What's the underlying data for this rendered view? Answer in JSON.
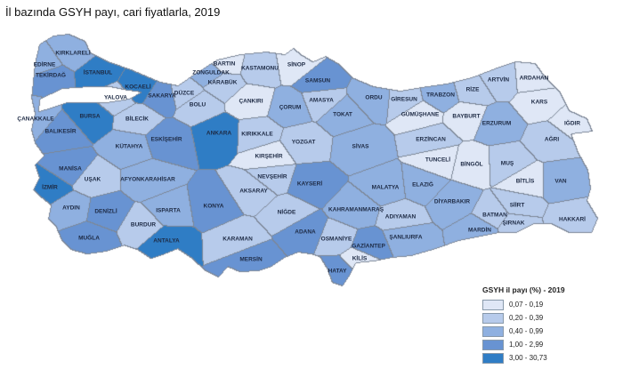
{
  "title": "İl bazında GSYH payı, cari fiyatlarla, 2019",
  "legend": {
    "title": "GSYH il payı (%) - 2019",
    "classes": [
      {
        "label": "0,07 - 0,19",
        "color": "#dfe7f6"
      },
      {
        "label": "0,20 - 0,39",
        "color": "#b7cbeb"
      },
      {
        "label": "0,40 - 0,99",
        "color": "#8fb0e0"
      },
      {
        "label": "1,00 - 2,99",
        "color": "#6893d2"
      },
      {
        "label": "3,00 - 30,73",
        "color": "#2f7dc5"
      }
    ]
  },
  "border_color": "#7d8797",
  "provinces": [
    {
      "name": "KIRKLARELİ",
      "cls": 3
    },
    {
      "name": "EDİRNE",
      "cls": 3
    },
    {
      "name": "TEKİRDAĞ",
      "cls": 4
    },
    {
      "name": "İSTANBUL",
      "cls": 5
    },
    {
      "name": "KOCAELİ",
      "cls": 5
    },
    {
      "name": "YALOVA",
      "cls": 2
    },
    {
      "name": "SAKARYA",
      "cls": 4
    },
    {
      "name": "DÜZCE",
      "cls": 2
    },
    {
      "name": "BOLU",
      "cls": 2
    },
    {
      "name": "ZONGULDAK",
      "cls": 3
    },
    {
      "name": "BARTIN",
      "cls": 1
    },
    {
      "name": "KARABÜK",
      "cls": 2
    },
    {
      "name": "KASTAMONU",
      "cls": 2
    },
    {
      "name": "SİNOP",
      "cls": 1
    },
    {
      "name": "SAMSUN",
      "cls": 4
    },
    {
      "name": "ÇANKIRI",
      "cls": 1
    },
    {
      "name": "ÇORUM",
      "cls": 3
    },
    {
      "name": "AMASYA",
      "cls": 2
    },
    {
      "name": "TOKAT",
      "cls": 3
    },
    {
      "name": "ORDU",
      "cls": 3
    },
    {
      "name": "GİRESUN",
      "cls": 2
    },
    {
      "name": "TRABZON",
      "cls": 3
    },
    {
      "name": "RİZE",
      "cls": 2
    },
    {
      "name": "ARTVİN",
      "cls": 2
    },
    {
      "name": "ARDAHAN",
      "cls": 1
    },
    {
      "name": "KARS",
      "cls": 1
    },
    {
      "name": "IĞDIR",
      "cls": 1
    },
    {
      "name": "AĞRI",
      "cls": 2
    },
    {
      "name": "ERZURUM",
      "cls": 3
    },
    {
      "name": "BAYBURT",
      "cls": 1
    },
    {
      "name": "GÜMÜŞHANE",
      "cls": 1
    },
    {
      "name": "ERZİNCAN",
      "cls": 2
    },
    {
      "name": "SİVAS",
      "cls": 3
    },
    {
      "name": "YOZGAT",
      "cls": 2
    },
    {
      "name": "KIRIKKALE",
      "cls": 2
    },
    {
      "name": "ANKARA",
      "cls": 5
    },
    {
      "name": "ESKİŞEHİR",
      "cls": 4
    },
    {
      "name": "BİLECİK",
      "cls": 2
    },
    {
      "name": "BURSA",
      "cls": 5
    },
    {
      "name": "ÇANAKKALE",
      "cls": 3
    },
    {
      "name": "BALIKESİR",
      "cls": 4
    },
    {
      "name": "KÜTAHYA",
      "cls": 3
    },
    {
      "name": "MANİSA",
      "cls": 4
    },
    {
      "name": "İZMİR",
      "cls": 5
    },
    {
      "name": "UŞAK",
      "cls": 2
    },
    {
      "name": "AFYONKARAHİSAR",
      "cls": 3
    },
    {
      "name": "AYDIN",
      "cls": 3
    },
    {
      "name": "DENİZLİ",
      "cls": 4
    },
    {
      "name": "ISPARTA",
      "cls": 3
    },
    {
      "name": "BURDUR",
      "cls": 2
    },
    {
      "name": "MUĞLA",
      "cls": 4
    },
    {
      "name": "ANTALYA",
      "cls": 5
    },
    {
      "name": "KONYA",
      "cls": 4
    },
    {
      "name": "KARAMAN",
      "cls": 2
    },
    {
      "name": "MERSİN",
      "cls": 4
    },
    {
      "name": "AKSARAY",
      "cls": 2
    },
    {
      "name": "NEVŞEHİR",
      "cls": 2
    },
    {
      "name": "KIRŞEHİR",
      "cls": 1
    },
    {
      "name": "NİĞDE",
      "cls": 2
    },
    {
      "name": "KAYSERİ",
      "cls": 4
    },
    {
      "name": "ADANA",
      "cls": 4
    },
    {
      "name": "OSMANİYE",
      "cls": 2
    },
    {
      "name": "HATAY",
      "cls": 4
    },
    {
      "name": "KİLİS",
      "cls": 1
    },
    {
      "name": "GAZİANTEP",
      "cls": 4
    },
    {
      "name": "KAHRAMANMARAŞ",
      "cls": 3
    },
    {
      "name": "ADIYAMAN",
      "cls": 2
    },
    {
      "name": "MALATYA",
      "cls": 3
    },
    {
      "name": "ELAZIĞ",
      "cls": 3
    },
    {
      "name": "TUNCELİ",
      "cls": 1
    },
    {
      "name": "BİNGÖL",
      "cls": 1
    },
    {
      "name": "MUŞ",
      "cls": 2
    },
    {
      "name": "BİTLİS",
      "cls": 1
    },
    {
      "name": "VAN",
      "cls": 3
    },
    {
      "name": "DİYARBAKIR",
      "cls": 3
    },
    {
      "name": "BATMAN",
      "cls": 2
    },
    {
      "name": "SİİRT",
      "cls": 2
    },
    {
      "name": "ŞIRNAK",
      "cls": 2
    },
    {
      "name": "HAKKARİ",
      "cls": 2
    },
    {
      "name": "MARDİN",
      "cls": 3
    },
    {
      "name": "ŞANLIURFA",
      "cls": 3
    }
  ]
}
